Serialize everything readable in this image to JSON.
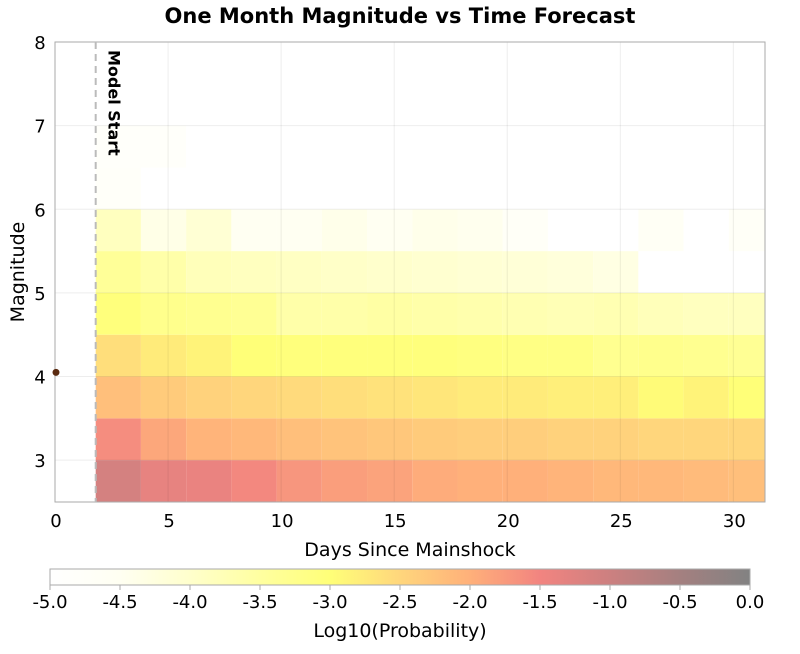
{
  "chart_data": {
    "type": "heatmap",
    "title": "One Month Magnitude vs Time Forecast",
    "xlabel": "Days Since Mainshock",
    "ylabel": "Magnitude",
    "xlim": [
      0,
      31.4
    ],
    "ylim": [
      2.5,
      8
    ],
    "xticks": [
      0,
      5,
      10,
      15,
      20,
      25,
      30
    ],
    "yticks": [
      3,
      4,
      5,
      6,
      7,
      8
    ],
    "grid": true,
    "x_bin_starts": [
      1.8,
      3.8,
      5.8,
      7.8,
      9.8,
      11.8,
      13.8,
      15.8,
      17.8,
      19.8,
      21.8,
      23.8,
      25.8,
      27.8,
      29.8
    ],
    "x_bin_width": 2,
    "y_bin_starts": [
      2.5,
      3.0,
      3.5,
      4.0,
      4.5,
      5.0,
      5.5,
      6.0,
      6.5
    ],
    "y_bin_height": 0.5,
    "log10_probability": [
      [
        -1.1,
        -1.35,
        -1.4,
        -1.55,
        -1.7,
        -1.8,
        -1.85,
        -1.95,
        -2.0,
        -2.0,
        -2.05,
        -2.1,
        -2.1,
        -2.15,
        -2.2
      ],
      [
        -1.6,
        -1.9,
        -2.05,
        -2.1,
        -2.2,
        -2.25,
        -2.3,
        -2.35,
        -2.4,
        -2.4,
        -2.45,
        -2.45,
        -2.5,
        -2.5,
        -2.5
      ],
      [
        -2.2,
        -2.35,
        -2.45,
        -2.5,
        -2.55,
        -2.6,
        -2.65,
        -2.7,
        -2.75,
        -2.75,
        -2.8,
        -2.8,
        -2.95,
        -2.85,
        -3.0
      ],
      [
        -2.6,
        -2.75,
        -2.85,
        -3.0,
        -3.05,
        -3.05,
        -3.05,
        -3.05,
        -3.1,
        -3.15,
        -3.15,
        -3.3,
        -3.25,
        -3.3,
        -3.35
      ],
      [
        -3.05,
        -3.25,
        -3.3,
        -3.35,
        -3.6,
        -3.6,
        -3.55,
        -3.6,
        -3.65,
        -3.7,
        -3.75,
        -3.7,
        -3.8,
        -3.85,
        -3.85
      ],
      [
        -3.4,
        -3.6,
        -3.8,
        -3.85,
        -3.9,
        -3.95,
        -4.0,
        -4.05,
        -4.1,
        -4.15,
        -4.2,
        -4.3,
        -5.0,
        -5.0,
        -5.0
      ],
      [
        -3.85,
        -4.35,
        -4.1,
        -4.5,
        -4.5,
        -4.4,
        -4.5,
        -4.4,
        -4.45,
        -4.7,
        -5.0,
        -5.0,
        -4.6,
        -5.0,
        -4.7
      ],
      [
        -4.75,
        -5.0,
        -5.0,
        -5.0,
        -5.0,
        -5.0,
        -5.0,
        -5.0,
        -5.0,
        -5.0,
        -5.0,
        -5.0,
        -5.0,
        -5.0,
        -5.0
      ],
      [
        -4.8,
        -4.8,
        -5.0,
        -5.0,
        -5.0,
        -5.0,
        -5.0,
        -5.0,
        -5.0,
        -5.0,
        -5.0,
        -5.0,
        -5.0,
        -5.0,
        -5.0
      ]
    ],
    "model_start": {
      "x": 1.8,
      "label": "Model Start"
    },
    "mainshock": {
      "x": 0,
      "y": 4.05,
      "color": "#5a2a10"
    },
    "colorbar": {
      "label": "Log10(Probability)",
      "range": [
        -5.0,
        0.0
      ],
      "ticks": [
        "-5.0",
        "-4.5",
        "-4.0",
        "-3.5",
        "-3.0",
        "-2.5",
        "-2.0",
        "-1.5",
        "-1.0",
        "-0.5",
        "0.0"
      ],
      "stops": [
        {
          "v": -5.0,
          "color": "#ffffff"
        },
        {
          "v": -4.5,
          "color": "#fffff2"
        },
        {
          "v": -4.0,
          "color": "#ffffcc"
        },
        {
          "v": -3.5,
          "color": "#ffffa0"
        },
        {
          "v": -3.0,
          "color": "#ffff78"
        },
        {
          "v": -2.5,
          "color": "#ffd67c"
        },
        {
          "v": -2.0,
          "color": "#ffb07a"
        },
        {
          "v": -1.5,
          "color": "#f28480"
        },
        {
          "v": -1.0,
          "color": "#cc8080"
        },
        {
          "v": -0.5,
          "color": "#a48080"
        },
        {
          "v": 0.0,
          "color": "#828282"
        }
      ]
    }
  }
}
